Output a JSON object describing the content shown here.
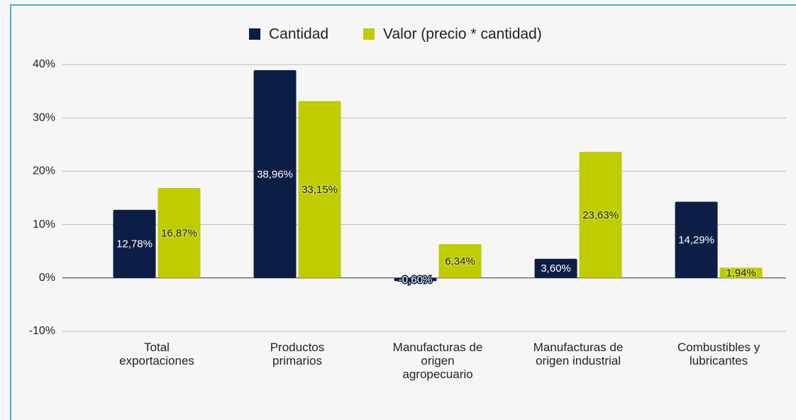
{
  "chart_data": {
    "type": "bar",
    "categories": [
      "Total\nexportaciones",
      "Productos\nprimarios",
      "Manufacturas de\norigen\nagropecuario",
      "Manufacturas de\norigen industrial",
      "Combustibles y\nlubricantes"
    ],
    "series": [
      {
        "name": "Cantidad",
        "color": "#0c1e45",
        "values": [
          12.78,
          38.96,
          -0.6,
          3.6,
          14.29
        ],
        "value_labels": [
          "12,78%",
          "38,96%",
          "-0,60%",
          "3,60%",
          "14,29%"
        ]
      },
      {
        "name": "Valor (precio * cantidad)",
        "color": "#bfcc00",
        "values": [
          16.87,
          33.15,
          6.34,
          23.63,
          1.94
        ],
        "value_labels": [
          "16,87%",
          "33,15%",
          "6,34%",
          "23,63%",
          "1,94%"
        ]
      }
    ],
    "ylim": [
      -10,
      40
    ],
    "yticks": [
      {
        "value": -10,
        "label": "-10%"
      },
      {
        "value": 0,
        "label": "0%"
      },
      {
        "value": 10,
        "label": "10%"
      },
      {
        "value": 20,
        "label": "20%"
      },
      {
        "value": 30,
        "label": "30%"
      },
      {
        "value": 40,
        "label": "40%"
      }
    ],
    "grid": true,
    "legend": "top"
  }
}
